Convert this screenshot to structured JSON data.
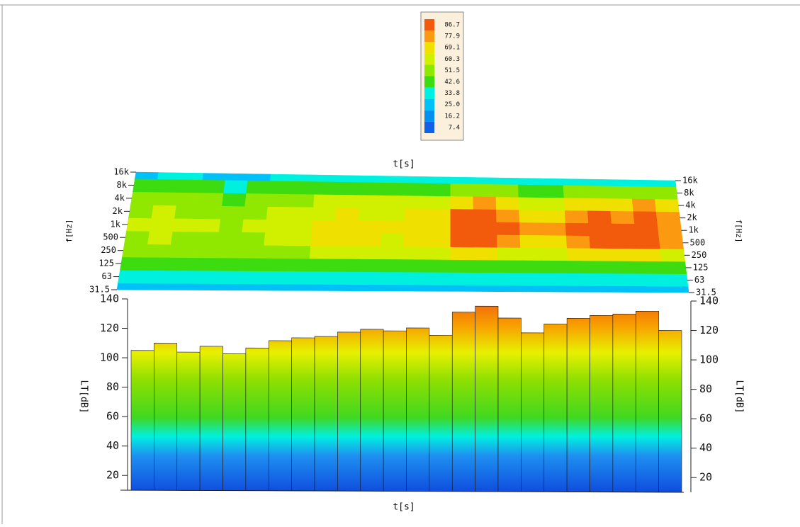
{
  "chart_data": {
    "type": "spectrogram-3d",
    "x_label": "t[s]",
    "freq_label": "f[Hz]",
    "z_label": "LT[dB]",
    "freq_ticks": [
      "31.5",
      "63",
      "125",
      "250",
      "500",
      "1k",
      "2k",
      "4k",
      "8k",
      "16k"
    ],
    "legend": {
      "levels": [
        86.7,
        77.9,
        69.1,
        60.3,
        51.5,
        42.6,
        33.8,
        {
          "value": 25.0,
          "label": "25.0"
        },
        16.2,
        7.4
      ],
      "colors": [
        "#f25a0c",
        "#fb9a10",
        "#f0e000",
        "#d0f000",
        "#90e800",
        "#3cdc10",
        "#00f0e0",
        "#00c0f8",
        "#0090f0",
        "#1060e8"
      ]
    },
    "bands": [
      [
        20,
        22,
        18,
        21,
        19,
        20,
        22,
        19,
        21,
        23,
        22,
        20,
        18,
        24,
        22,
        21,
        23,
        20,
        22,
        21,
        20,
        22,
        21,
        19
      ],
      [
        28,
        30,
        27,
        29,
        26,
        28,
        30,
        29,
        31,
        32,
        30,
        29,
        31,
        33,
        32,
        30,
        31,
        29,
        30,
        31,
        32,
        30,
        31,
        29
      ],
      [
        36,
        38,
        35,
        37,
        34,
        36,
        37,
        36,
        38,
        39,
        38,
        37,
        40,
        41,
        40,
        39,
        38,
        37,
        38,
        39,
        40,
        39,
        38,
        37
      ],
      [
        45,
        47,
        44,
        46,
        43,
        45,
        48,
        50,
        54,
        55,
        54,
        53,
        55,
        57,
        62,
        64,
        60,
        56,
        57,
        61,
        63,
        62,
        64,
        58
      ],
      [
        50,
        53,
        51,
        50,
        48,
        50,
        53,
        56,
        61,
        62,
        61,
        60,
        62,
        63,
        79,
        81,
        77,
        67,
        69,
        77,
        79,
        78,
        81,
        73
      ],
      [
        52,
        55,
        53,
        52,
        50,
        52,
        55,
        58,
        63,
        64,
        63,
        62,
        64,
        65,
        82,
        84,
        80,
        70,
        72,
        80,
        82,
        81,
        84,
        76
      ],
      [
        50,
        53,
        51,
        50,
        48,
        50,
        53,
        55,
        60,
        61,
        60,
        59,
        61,
        62,
        79,
        80,
        76,
        67,
        69,
        76,
        78,
        77,
        80,
        73
      ],
      [
        44,
        47,
        45,
        44,
        42,
        44,
        47,
        49,
        53,
        54,
        53,
        52,
        54,
        55,
        68,
        70,
        66,
        58,
        60,
        66,
        68,
        67,
        70,
        64
      ],
      [
        34,
        36,
        35,
        34,
        33,
        34,
        36,
        38,
        40,
        41,
        40,
        39,
        41,
        42,
        46,
        47,
        45,
        41,
        42,
        45,
        46,
        45,
        47,
        43
      ],
      [
        24,
        26,
        25,
        24,
        23,
        24,
        26,
        27,
        28,
        29,
        28,
        27,
        29,
        30,
        31,
        32,
        30,
        28,
        29,
        30,
        31,
        30,
        31,
        29
      ]
    ],
    "lt_values": [
      105,
      110,
      104,
      108,
      103,
      107,
      112,
      114,
      115,
      118,
      120,
      119,
      121,
      116,
      132,
      136,
      128,
      118,
      124,
      128,
      130,
      131,
      133,
      120
    ],
    "zlim": [
      10,
      140
    ],
    "zticks": [
      20,
      40,
      60,
      80,
      100,
      120,
      140
    ]
  }
}
